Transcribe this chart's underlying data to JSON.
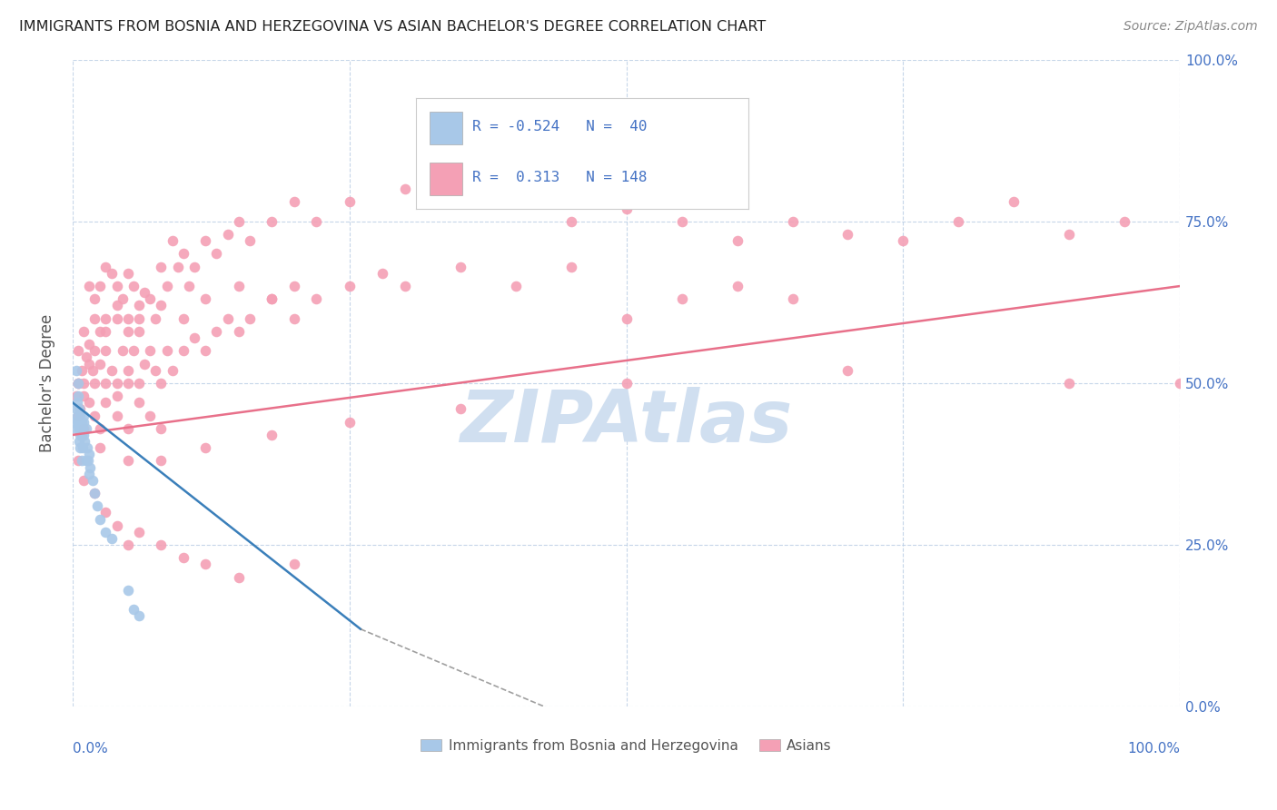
{
  "title": "IMMIGRANTS FROM BOSNIA AND HERZEGOVINA VS ASIAN BACHELOR'S DEGREE CORRELATION CHART",
  "source": "Source: ZipAtlas.com",
  "ylabel": "Bachelor's Degree",
  "ytick_values": [
    0,
    25,
    50,
    75,
    100
  ],
  "xlim": [
    0,
    100
  ],
  "ylim": [
    0,
    100
  ],
  "blue_color": "#a8c8e8",
  "pink_color": "#f4a0b5",
  "blue_line_color": "#3a7fba",
  "pink_line_color": "#e8708a",
  "axis_label_color": "#4472c4",
  "legend_r_color": "#4472c4",
  "watermark_color": "#d0dff0",
  "background_color": "#ffffff",
  "blue_scatter": [
    [
      0.2,
      44
    ],
    [
      0.3,
      46
    ],
    [
      0.3,
      43
    ],
    [
      0.4,
      47
    ],
    [
      0.4,
      45
    ],
    [
      0.5,
      50
    ],
    [
      0.5,
      44
    ],
    [
      0.5,
      48
    ],
    [
      0.6,
      46
    ],
    [
      0.6,
      43
    ],
    [
      0.6,
      41
    ],
    [
      0.7,
      45
    ],
    [
      0.7,
      42
    ],
    [
      0.7,
      40
    ],
    [
      0.8,
      44
    ],
    [
      0.8,
      42
    ],
    [
      0.8,
      38
    ],
    [
      0.9,
      43
    ],
    [
      0.9,
      40
    ],
    [
      1.0,
      44
    ],
    [
      1.0,
      42
    ],
    [
      1.1,
      41
    ],
    [
      1.2,
      43
    ],
    [
      1.2,
      38
    ],
    [
      1.3,
      40
    ],
    [
      1.4,
      38
    ],
    [
      1.5,
      39
    ],
    [
      1.5,
      36
    ],
    [
      1.6,
      37
    ],
    [
      1.8,
      35
    ],
    [
      2.0,
      33
    ],
    [
      2.2,
      31
    ],
    [
      2.5,
      29
    ],
    [
      3.0,
      27
    ],
    [
      3.5,
      26
    ],
    [
      0.3,
      52
    ],
    [
      1.0,
      45
    ],
    [
      5.5,
      15
    ],
    [
      5.0,
      18
    ],
    [
      6.0,
      14
    ]
  ],
  "pink_scatter": [
    [
      1.5,
      65
    ],
    [
      2.0,
      63
    ],
    [
      2.5,
      65
    ],
    [
      3.0,
      60
    ],
    [
      3.0,
      68
    ],
    [
      3.5,
      67
    ],
    [
      4.0,
      62
    ],
    [
      4.0,
      65
    ],
    [
      4.5,
      63
    ],
    [
      5.0,
      60
    ],
    [
      5.0,
      67
    ],
    [
      5.5,
      65
    ],
    [
      6.0,
      62
    ],
    [
      6.0,
      58
    ],
    [
      6.5,
      64
    ],
    [
      7.0,
      63
    ],
    [
      7.5,
      60
    ],
    [
      8.0,
      68
    ],
    [
      8.5,
      65
    ],
    [
      9.0,
      72
    ],
    [
      9.5,
      68
    ],
    [
      10.0,
      70
    ],
    [
      10.5,
      65
    ],
    [
      11.0,
      68
    ],
    [
      12.0,
      72
    ],
    [
      13.0,
      70
    ],
    [
      14.0,
      73
    ],
    [
      15.0,
      75
    ],
    [
      16.0,
      72
    ],
    [
      18.0,
      75
    ],
    [
      20.0,
      78
    ],
    [
      22.0,
      75
    ],
    [
      25.0,
      78
    ],
    [
      0.5,
      50
    ],
    [
      0.8,
      52
    ],
    [
      1.0,
      48
    ],
    [
      1.2,
      54
    ],
    [
      1.5,
      56
    ],
    [
      1.8,
      52
    ],
    [
      2.0,
      55
    ],
    [
      2.5,
      58
    ],
    [
      3.0,
      55
    ],
    [
      3.5,
      52
    ],
    [
      4.0,
      50
    ],
    [
      4.5,
      55
    ],
    [
      5.0,
      52
    ],
    [
      5.5,
      55
    ],
    [
      6.0,
      50
    ],
    [
      6.5,
      53
    ],
    [
      7.0,
      55
    ],
    [
      7.5,
      52
    ],
    [
      8.0,
      50
    ],
    [
      8.5,
      55
    ],
    [
      9.0,
      52
    ],
    [
      10.0,
      55
    ],
    [
      11.0,
      57
    ],
    [
      12.0,
      55
    ],
    [
      13.0,
      58
    ],
    [
      14.0,
      60
    ],
    [
      15.0,
      58
    ],
    [
      16.0,
      60
    ],
    [
      18.0,
      63
    ],
    [
      20.0,
      60
    ],
    [
      22.0,
      63
    ],
    [
      25.0,
      65
    ],
    [
      28.0,
      67
    ],
    [
      30.0,
      65
    ],
    [
      35.0,
      68
    ],
    [
      40.0,
      65
    ],
    [
      45.0,
      68
    ],
    [
      50.0,
      60
    ],
    [
      55.0,
      63
    ],
    [
      60.0,
      65
    ],
    [
      65.0,
      63
    ],
    [
      0.5,
      45
    ],
    [
      1.0,
      43
    ],
    [
      1.5,
      47
    ],
    [
      2.0,
      45
    ],
    [
      2.5,
      43
    ],
    [
      3.0,
      47
    ],
    [
      4.0,
      45
    ],
    [
      5.0,
      43
    ],
    [
      6.0,
      47
    ],
    [
      7.0,
      45
    ],
    [
      8.0,
      43
    ],
    [
      0.3,
      48
    ],
    [
      0.5,
      50
    ],
    [
      0.7,
      46
    ],
    [
      1.0,
      50
    ],
    [
      1.5,
      53
    ],
    [
      2.0,
      50
    ],
    [
      2.5,
      53
    ],
    [
      3.0,
      50
    ],
    [
      4.0,
      48
    ],
    [
      5.0,
      50
    ],
    [
      0.5,
      55
    ],
    [
      1.0,
      58
    ],
    [
      2.0,
      60
    ],
    [
      3.0,
      58
    ],
    [
      4.0,
      60
    ],
    [
      5.0,
      58
    ],
    [
      6.0,
      60
    ],
    [
      8.0,
      62
    ],
    [
      10.0,
      60
    ],
    [
      12.0,
      63
    ],
    [
      15.0,
      65
    ],
    [
      18.0,
      63
    ],
    [
      20.0,
      65
    ],
    [
      0.5,
      38
    ],
    [
      1.0,
      35
    ],
    [
      2.0,
      33
    ],
    [
      3.0,
      30
    ],
    [
      4.0,
      28
    ],
    [
      5.0,
      25
    ],
    [
      6.0,
      27
    ],
    [
      8.0,
      25
    ],
    [
      10.0,
      23
    ],
    [
      12.0,
      22
    ],
    [
      15.0,
      20
    ],
    [
      20.0,
      22
    ],
    [
      0.8,
      42
    ],
    [
      2.5,
      40
    ],
    [
      5.0,
      38
    ],
    [
      8.0,
      38
    ],
    [
      12.0,
      40
    ],
    [
      18.0,
      42
    ],
    [
      25.0,
      44
    ],
    [
      35.0,
      46
    ],
    [
      50.0,
      50
    ],
    [
      70.0,
      52
    ],
    [
      90.0,
      50
    ],
    [
      100.0,
      50
    ],
    [
      30.0,
      80
    ],
    [
      35.0,
      82
    ],
    [
      40.0,
      78
    ],
    [
      45.0,
      75
    ],
    [
      50.0,
      77
    ],
    [
      55.0,
      75
    ],
    [
      60.0,
      72
    ],
    [
      65.0,
      75
    ],
    [
      70.0,
      73
    ],
    [
      75.0,
      72
    ],
    [
      80.0,
      75
    ],
    [
      85.0,
      78
    ],
    [
      90.0,
      73
    ],
    [
      95.0,
      75
    ]
  ],
  "blue_trendline": {
    "x_start": 0.0,
    "y_start": 47,
    "x_end": 26,
    "y_end": 12
  },
  "blue_trendline_dashed": {
    "x_start": 26,
    "y_start": 12,
    "x_end": 44,
    "y_end": -1
  },
  "pink_trendline": {
    "x_start": 0.0,
    "y_start": 42,
    "x_end": 100,
    "y_end": 65
  }
}
